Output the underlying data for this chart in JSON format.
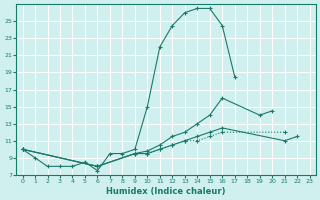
{
  "xlabel": "Humidex (Indice chaleur)",
  "ylabel": "",
  "bg_color": "#d0efef",
  "grid_color": "#ffffff",
  "line_color": "#1a7a6a",
  "xlim": [
    -0.5,
    23.5
  ],
  "ylim": [
    7,
    27
  ],
  "xticks": [
    0,
    1,
    2,
    3,
    4,
    5,
    6,
    7,
    8,
    9,
    10,
    11,
    12,
    13,
    14,
    15,
    16,
    17,
    18,
    19,
    20,
    21,
    22,
    23
  ],
  "yticks": [
    7,
    9,
    11,
    13,
    15,
    17,
    19,
    21,
    23,
    25
  ],
  "series": [
    {
      "x": [
        0,
        1,
        2,
        3,
        4,
        5,
        6,
        7,
        8,
        9,
        10,
        11,
        12,
        13,
        14,
        15,
        16,
        17
      ],
      "y": [
        10,
        9,
        8,
        8,
        8,
        8.5,
        7.5,
        9.5,
        9.5,
        10,
        15,
        22,
        24.5,
        26,
        26.5,
        26.5,
        24.5,
        18.5
      ],
      "linestyle": "-",
      "marker": "+"
    },
    {
      "x": [
        0,
        6,
        9,
        10,
        11,
        12,
        13,
        14,
        15,
        16,
        21,
        22
      ],
      "y": [
        10,
        8,
        9.5,
        9.5,
        10,
        10.5,
        11,
        11.5,
        12,
        12.5,
        11,
        11.5
      ],
      "linestyle": "-",
      "marker": "+"
    },
    {
      "x": [
        0,
        6,
        9,
        10,
        11,
        12,
        13,
        14,
        15,
        16,
        19,
        20
      ],
      "y": [
        10,
        8,
        9.5,
        9.8,
        10.5,
        11.5,
        12,
        13,
        14,
        16,
        14,
        14.5
      ],
      "linestyle": "-",
      "marker": "+"
    },
    {
      "x": [
        0,
        6,
        9,
        10,
        11,
        12,
        13,
        14,
        15,
        16,
        21
      ],
      "y": [
        10,
        8,
        9.5,
        9.5,
        10,
        10.5,
        11,
        11,
        11.5,
        12,
        12
      ],
      "linestyle": ":",
      "marker": "+"
    }
  ]
}
